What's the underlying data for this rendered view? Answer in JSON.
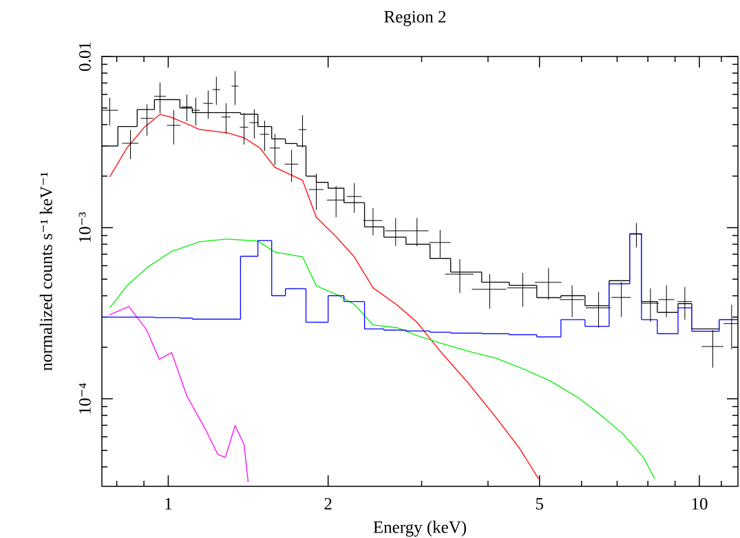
{
  "chart_data": {
    "type": "line",
    "title": "Region 2",
    "x_label": "Energy (keV)",
    "y_label": "normalized counts s⁻¹ keV⁻¹",
    "xscale": "log",
    "yscale": "log",
    "xlim": [
      0.75,
      11.82
    ],
    "ylim": [
      3.08e-05,
      0.01
    ],
    "xticks": [
      1,
      2,
      5,
      10
    ],
    "xminorticks": [
      0.8,
      0.9,
      3,
      4,
      6,
      7,
      8,
      9,
      11
    ],
    "yticks": [
      {
        "value": 0.0001,
        "label": "10⁻⁴"
      },
      {
        "value": 0.001,
        "label": "10⁻³"
      },
      0.01
    ],
    "yminorticks": [
      4e-05,
      5e-05,
      6e-05,
      7e-05,
      8e-05,
      9e-05,
      0.0002,
      0.0003,
      0.0004,
      0.0005,
      0.0006,
      0.0007,
      0.0008,
      0.0009,
      0.002,
      0.003,
      0.004,
      0.005,
      0.006,
      0.007,
      0.008,
      0.009
    ],
    "data": {
      "color": "#000000",
      "x": [
        0.776,
        0.849,
        0.912,
        0.965,
        1.024,
        1.084,
        1.127,
        1.189,
        1.232,
        1.285,
        1.336,
        1.389,
        1.452,
        1.519,
        1.588,
        1.707,
        1.79,
        1.9,
        2.07,
        2.24,
        2.43,
        2.68,
        2.94,
        3.25,
        3.54,
        4.03,
        4.65,
        5.2,
        5.76,
        6.46,
        7.13,
        7.61,
        8.09,
        8.67,
        9.39,
        10.6,
        11.5
      ],
      "xerr": [
        0.028,
        0.03,
        0.025,
        0.025,
        0.03,
        0.025,
        0.02,
        0.025,
        0.02,
        0.025,
        0.02,
        0.025,
        0.03,
        0.03,
        0.035,
        0.05,
        0.03,
        0.06,
        0.08,
        0.07,
        0.1,
        0.12,
        0.15,
        0.15,
        0.22,
        0.3,
        0.3,
        0.3,
        0.3,
        0.35,
        0.3,
        0.2,
        0.3,
        0.3,
        0.3,
        0.5,
        0.4
      ],
      "values": [
        0.00485,
        0.00311,
        0.00435,
        0.00585,
        0.00396,
        0.00508,
        0.00485,
        0.00532,
        0.00641,
        0.00443,
        0.00671,
        0.00386,
        0.00411,
        0.00351,
        0.00292,
        0.00235,
        0.00374,
        0.00167,
        0.00145,
        0.00152,
        0.0011,
        0.000959,
        0.000959,
        0.000819,
        0.000535,
        0.000436,
        0.000445,
        0.000479,
        0.00038,
        0.00034,
        0.000391,
        0.000916,
        0.000362,
        0.00038,
        0.00037,
        0.000202,
        0.000275
      ],
      "yerr": [
        0.0009,
        0.0006,
        0.0009,
        0.0012,
        0.0009,
        0.0009,
        0.0009,
        0.001,
        0.0012,
        0.0009,
        0.0015,
        0.0008,
        0.0008,
        0.0007,
        0.0006,
        0.0005,
        0.0008,
        0.0004,
        0.0003,
        0.0003,
        0.0002,
        0.00018,
        0.00018,
        0.00015,
        0.00012,
        0.0001,
        0.0001,
        0.0001,
        8e-05,
        8e-05,
        9e-05,
        0.00015,
        8e-05,
        8e-05,
        8e-05,
        5e-05,
        8e-05
      ]
    },
    "bins": [
      0.75,
      0.804,
      0.874,
      0.942,
      1.052,
      1.11,
      1.368,
      1.475,
      1.566,
      1.662,
      1.748,
      1.817,
      1.9,
      2.0,
      2.142,
      2.342,
      2.547,
      2.803,
      3.111,
      3.402,
      3.892,
      4.385,
      4.942,
      5.487,
      6.091,
      6.763,
      7.396,
      7.781,
      8.333,
      9.117,
      9.676,
      10.9,
      11.82
    ],
    "steps": [
      {
        "color": "#000000",
        "values": [
          0.003,
          0.0039,
          0.0049,
          0.0056,
          0.005,
          0.0047,
          0.0046,
          0.0039,
          0.0033,
          0.0031,
          0.003,
          0.002,
          0.00184,
          0.0017,
          0.0014,
          0.00101,
          0.00088,
          0.0008,
          0.00066,
          0.00055,
          0.00048,
          0.00046,
          0.00039,
          0.0004,
          0.00035,
          0.00049,
          0.00092,
          0.00037,
          0.00032,
          0.00036,
          0.000256,
          0.00029
        ]
      },
      {
        "color": "#0000ff",
        "values": [
          0.0003,
          0.0003,
          0.0003,
          0.000298,
          0.000296,
          0.000292,
          0.00068,
          0.00084,
          0.0004,
          0.00044,
          0.00044,
          0.00028,
          0.00028,
          0.0004,
          0.00037,
          0.000256,
          0.000252,
          0.000249,
          0.000245,
          0.000242,
          0.00024,
          0.000237,
          0.00023,
          0.00029,
          0.000265,
          0.00047,
          0.00092,
          0.00029,
          0.00024,
          0.00034,
          0.000248,
          0.00029
        ]
      }
    ],
    "lines": [
      {
        "color": "#ff0000",
        "x": [
          0.776,
          0.836,
          0.901,
          0.965,
          1.009,
          1.071,
          1.144,
          1.293,
          1.389,
          1.488,
          1.588,
          1.79,
          1.9,
          2.066,
          2.24,
          2.43,
          2.7,
          2.94,
          3.25,
          3.66,
          4.13,
          4.58,
          4.98
        ],
        "values": [
          0.00198,
          0.00292,
          0.00385,
          0.00459,
          0.00443,
          0.00411,
          0.00375,
          0.00358,
          0.00335,
          0.00292,
          0.00225,
          0.00189,
          0.00115,
          0.000891,
          0.000675,
          0.000445,
          0.000352,
          0.00028,
          0.00019,
          0.000125,
          7.86e-05,
          5.17e-05,
          3.41e-05
        ]
      },
      {
        "color": "#00ee00",
        "x": [
          0.776,
          0.836,
          0.914,
          1.015,
          1.144,
          1.289,
          1.475,
          1.588,
          1.79,
          1.9,
          2.08,
          2.24,
          2.43,
          2.7,
          2.94,
          3.25,
          3.66,
          4.13,
          4.65,
          5.24,
          5.9,
          6.46,
          7.18,
          7.86,
          8.24
        ],
        "values": [
          0.00034,
          0.000457,
          0.000587,
          0.000726,
          0.000827,
          0.000858,
          0.000835,
          0.000719,
          0.000675,
          0.000457,
          0.000405,
          0.000356,
          0.00027,
          0.00026,
          0.000234,
          0.000212,
          0.00019,
          0.000173,
          0.00015,
          0.000127,
          0.000102,
          8.23e-05,
          6.24e-05,
          4.51e-05,
          3.41e-05
        ]
      },
      {
        "color": "#ff00ff",
        "x": [
          0.776,
          0.843,
          0.909,
          0.962,
          1.015,
          1.084,
          1.178,
          1.24,
          1.281,
          1.336,
          1.389,
          1.414
        ],
        "values": [
          0.00031,
          0.000346,
          0.000255,
          0.00017,
          0.000186,
          0.000104,
          6.53e-05,
          4.72e-05,
          4.55e-05,
          6.97e-05,
          5.42e-05,
          3.26e-05
        ]
      }
    ]
  }
}
